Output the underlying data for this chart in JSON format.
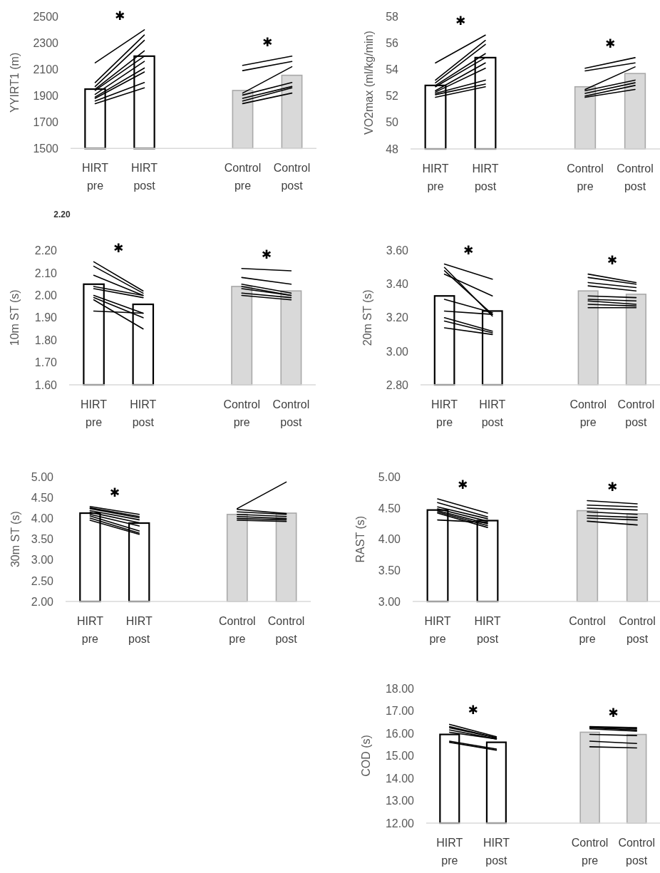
{
  "chart_data": [
    {
      "type": "bar",
      "ylabel": "YYIRT1 (m)",
      "categories": [
        "HIRT pre",
        "HIRT post",
        null,
        "Control pre",
        "Control post"
      ],
      "ylim": [
        1500,
        2500
      ],
      "yticks": [
        1500,
        1700,
        1900,
        2100,
        2300,
        2500
      ],
      "annotations": [
        "✱",
        "✱"
      ],
      "series": [
        {
          "type": "bar",
          "colors": [
            "#ffffff",
            "#ffffff",
            null,
            "#d9d9d9",
            "#d9d9d9"
          ],
          "values": [
            1950,
            2200,
            null,
            1940,
            2055
          ]
        },
        {
          "type": "line",
          "color": "#000000",
          "values": [
            2150,
            2400,
            null,
            null,
            null
          ]
        },
        {
          "type": "line",
          "color": "#000000",
          "values": [
            2000,
            2360,
            null,
            null,
            null
          ]
        },
        {
          "type": "line",
          "color": "#000000",
          "values": [
            1970,
            2320,
            null,
            null,
            null
          ]
        },
        {
          "type": "line",
          "color": "#000000",
          "values": [
            1950,
            2240,
            null,
            null,
            null
          ]
        },
        {
          "type": "line",
          "color": "#000000",
          "values": [
            1940,
            2200,
            null,
            null,
            null
          ]
        },
        {
          "type": "line",
          "color": "#000000",
          "values": [
            1910,
            2160,
            null,
            null,
            null
          ]
        },
        {
          "type": "line",
          "color": "#000000",
          "values": [
            1890,
            2110,
            null,
            null,
            null
          ]
        },
        {
          "type": "line",
          "color": "#000000",
          "values": [
            1880,
            2080,
            null,
            null,
            null
          ]
        },
        {
          "type": "line",
          "color": "#000000",
          "values": [
            1860,
            2000,
            null,
            null,
            null
          ]
        },
        {
          "type": "line",
          "color": "#000000",
          "values": [
            1840,
            1960,
            null,
            null,
            null
          ]
        },
        {
          "type": "line",
          "color": "#000000",
          "values": [
            null,
            null,
            null,
            2130,
            2200
          ]
        },
        {
          "type": "line",
          "color": "#000000",
          "values": [
            null,
            null,
            null,
            2090,
            2160
          ]
        },
        {
          "type": "line",
          "color": "#000000",
          "values": [
            null,
            null,
            null,
            1920,
            2120
          ]
        },
        {
          "type": "line",
          "color": "#000000",
          "values": [
            null,
            null,
            null,
            1905,
            2000
          ]
        },
        {
          "type": "line",
          "color": "#000000",
          "values": [
            null,
            null,
            null,
            1880,
            1970
          ]
        },
        {
          "type": "line",
          "color": "#000000",
          "values": [
            null,
            null,
            null,
            1860,
            1960
          ]
        },
        {
          "type": "line",
          "color": "#000000",
          "values": [
            null,
            null,
            null,
            1840,
            1920
          ]
        }
      ]
    },
    {
      "type": "bar",
      "ylabel": "VO2max (ml/kg/min)",
      "categories": [
        "HIRT pre",
        "HIRT post",
        null,
        "Control pre",
        "Control post"
      ],
      "ylim": [
        48,
        58
      ],
      "yticks": [
        48,
        50,
        52,
        54,
        56,
        58
      ],
      "annotations": [
        "✱",
        "✱"
      ],
      "series": [
        {
          "type": "bar",
          "colors": [
            "#ffffff",
            "#ffffff",
            null,
            "#d9d9d9",
            "#d9d9d9"
          ],
          "values": [
            52.8,
            54.9,
            null,
            52.7,
            53.7
          ]
        },
        {
          "type": "line",
          "color": "#000000",
          "values": [
            54.5,
            56.6,
            null,
            null,
            null
          ]
        },
        {
          "type": "line",
          "color": "#000000",
          "values": [
            53.2,
            56.2,
            null,
            null,
            null
          ]
        },
        {
          "type": "line",
          "color": "#000000",
          "values": [
            53.0,
            55.9,
            null,
            null,
            null
          ]
        },
        {
          "type": "line",
          "color": "#000000",
          "values": [
            52.8,
            55.2,
            null,
            null,
            null
          ]
        },
        {
          "type": "line",
          "color": "#000000",
          "values": [
            52.7,
            54.9,
            null,
            null,
            null
          ]
        },
        {
          "type": "line",
          "color": "#000000",
          "values": [
            52.4,
            54.5,
            null,
            null,
            null
          ]
        },
        {
          "type": "line",
          "color": "#000000",
          "values": [
            52.3,
            54.1,
            null,
            null,
            null
          ]
        },
        {
          "type": "line",
          "color": "#000000",
          "values": [
            52.2,
            53.2,
            null,
            null,
            null
          ]
        },
        {
          "type": "line",
          "color": "#000000",
          "values": [
            52.1,
            52.9,
            null,
            null,
            null
          ]
        },
        {
          "type": "line",
          "color": "#000000",
          "values": [
            51.9,
            52.7,
            null,
            null,
            null
          ]
        },
        {
          "type": "line",
          "color": "#000000",
          "values": [
            null,
            null,
            null,
            54.1,
            54.9
          ]
        },
        {
          "type": "line",
          "color": "#000000",
          "values": [
            null,
            null,
            null,
            53.9,
            54.5
          ]
        },
        {
          "type": "line",
          "color": "#000000",
          "values": [
            null,
            null,
            null,
            52.5,
            54.2
          ]
        },
        {
          "type": "line",
          "color": "#000000",
          "values": [
            null,
            null,
            null,
            52.4,
            53.2
          ]
        },
        {
          "type": "line",
          "color": "#000000",
          "values": [
            null,
            null,
            null,
            52.2,
            53.0
          ]
        },
        {
          "type": "line",
          "color": "#000000",
          "values": [
            null,
            null,
            null,
            52.0,
            52.8
          ]
        },
        {
          "type": "line",
          "color": "#000000",
          "values": [
            null,
            null,
            null,
            51.9,
            52.5
          ]
        }
      ]
    },
    {
      "type": "bar",
      "title": "2.20",
      "ylabel": "10m ST (s)",
      "categories": [
        "HIRT pre",
        "HIRT post",
        null,
        "Control pre",
        "Control post"
      ],
      "ylim": [
        1.6,
        2.2
      ],
      "yticks": [
        {
          "value": 1.6,
          "label": "1.60"
        },
        {
          "value": 1.7,
          "label": "1.70"
        },
        {
          "value": 1.8,
          "label": "1.80"
        },
        {
          "value": 1.9,
          "label": "1.90"
        },
        {
          "value": 2.0,
          "label": "2.00"
        },
        {
          "value": 2.1,
          "label": "2.10"
        },
        {
          "value": 2.2,
          "label": "2.20"
        }
      ],
      "annotations": [
        "✱",
        "✱"
      ],
      "series": [
        {
          "type": "bar",
          "colors": [
            "#ffffff",
            "#ffffff",
            null,
            "#d9d9d9",
            "#d9d9d9"
          ],
          "values": [
            2.05,
            1.96,
            null,
            2.04,
            2.02
          ]
        },
        {
          "type": "line",
          "color": "#000000",
          "values": [
            2.15,
            2.02,
            null,
            null,
            null
          ]
        },
        {
          "type": "line",
          "color": "#000000",
          "values": [
            2.13,
            2.01,
            null,
            null,
            null
          ]
        },
        {
          "type": "line",
          "color": "#000000",
          "values": [
            2.09,
            2.0,
            null,
            null,
            null
          ]
        },
        {
          "type": "line",
          "color": "#000000",
          "values": [
            2.04,
            2.0,
            null,
            null,
            null
          ]
        },
        {
          "type": "line",
          "color": "#000000",
          "values": [
            2.03,
            1.99,
            null,
            null,
            null
          ]
        },
        {
          "type": "line",
          "color": "#000000",
          "values": [
            2.0,
            1.92,
            null,
            null,
            null
          ]
        },
        {
          "type": "line",
          "color": "#000000",
          "values": [
            1.99,
            1.9,
            null,
            null,
            null
          ]
        },
        {
          "type": "line",
          "color": "#000000",
          "values": [
            1.98,
            1.85,
            null,
            null,
            null
          ]
        },
        {
          "type": "line",
          "color": "#000000",
          "values": [
            1.93,
            1.92,
            null,
            null,
            null
          ]
        },
        {
          "type": "line",
          "color": "#000000",
          "values": [
            null,
            null,
            null,
            2.12,
            2.11
          ]
        },
        {
          "type": "line",
          "color": "#000000",
          "values": [
            null,
            null,
            null,
            2.08,
            2.05
          ]
        },
        {
          "type": "line",
          "color": "#000000",
          "values": [
            null,
            null,
            null,
            2.05,
            2.01
          ]
        },
        {
          "type": "line",
          "color": "#000000",
          "values": [
            null,
            null,
            null,
            2.04,
            2.0
          ]
        },
        {
          "type": "line",
          "color": "#000000",
          "values": [
            null,
            null,
            null,
            2.03,
            2.0
          ]
        },
        {
          "type": "line",
          "color": "#000000",
          "values": [
            null,
            null,
            null,
            2.01,
            1.99
          ]
        },
        {
          "type": "line",
          "color": "#000000",
          "values": [
            null,
            null,
            null,
            2.0,
            1.98
          ]
        }
      ]
    },
    {
      "type": "bar",
      "ylabel": "20m ST (s)",
      "categories": [
        "HIRT pre",
        "HIRT post",
        null,
        "Control pre",
        "Control post"
      ],
      "ylim": [
        2.8,
        3.6
      ],
      "yticks": [
        {
          "value": 2.8,
          "label": "2.80"
        },
        {
          "value": 3.0,
          "label": "3.00"
        },
        {
          "value": 3.2,
          "label": "3.20"
        },
        {
          "value": 3.4,
          "label": "3.40"
        },
        {
          "value": 3.6,
          "label": "3.60"
        }
      ],
      "annotations": [
        "✱",
        "✱"
      ],
      "series": [
        {
          "type": "bar",
          "colors": [
            "#ffffff",
            "#ffffff",
            null,
            "#d9d9d9",
            "#d9d9d9"
          ],
          "values": [
            3.33,
            3.24,
            null,
            3.36,
            3.34
          ]
        },
        {
          "type": "line",
          "color": "#000000",
          "values": [
            3.52,
            3.43,
            null,
            null,
            null
          ]
        },
        {
          "type": "line",
          "color": "#000000",
          "values": [
            3.5,
            3.21,
            null,
            null,
            null
          ]
        },
        {
          "type": "line",
          "color": "#000000",
          "values": [
            3.48,
            3.22,
            null,
            null,
            null
          ]
        },
        {
          "type": "line",
          "color": "#000000",
          "values": [
            3.46,
            3.33,
            null,
            null,
            null
          ]
        },
        {
          "type": "line",
          "color": "#000000",
          "values": [
            3.31,
            3.23,
            null,
            null,
            null
          ]
        },
        {
          "type": "line",
          "color": "#000000",
          "values": [
            3.24,
            3.22,
            null,
            null,
            null
          ]
        },
        {
          "type": "line",
          "color": "#000000",
          "values": [
            3.2,
            3.12,
            null,
            null,
            null
          ]
        },
        {
          "type": "line",
          "color": "#000000",
          "values": [
            3.18,
            3.11,
            null,
            null,
            null
          ]
        },
        {
          "type": "line",
          "color": "#000000",
          "values": [
            3.14,
            3.1,
            null,
            null,
            null
          ]
        },
        {
          "type": "line",
          "color": "#000000",
          "values": [
            null,
            null,
            null,
            3.46,
            3.41
          ]
        },
        {
          "type": "line",
          "color": "#000000",
          "values": [
            null,
            null,
            null,
            3.44,
            3.4
          ]
        },
        {
          "type": "line",
          "color": "#000000",
          "values": [
            null,
            null,
            null,
            3.41,
            3.38
          ]
        },
        {
          "type": "line",
          "color": "#000000",
          "values": [
            null,
            null,
            null,
            3.39,
            3.36
          ]
        },
        {
          "type": "line",
          "color": "#000000",
          "values": [
            null,
            null,
            null,
            3.33,
            3.32
          ]
        },
        {
          "type": "line",
          "color": "#000000",
          "values": [
            null,
            null,
            null,
            3.31,
            3.3
          ]
        },
        {
          "type": "line",
          "color": "#000000",
          "values": [
            null,
            null,
            null,
            3.3,
            3.28
          ]
        },
        {
          "type": "line",
          "color": "#000000",
          "values": [
            null,
            null,
            null,
            3.28,
            3.27
          ]
        },
        {
          "type": "line",
          "color": "#000000",
          "values": [
            null,
            null,
            null,
            3.26,
            3.26
          ]
        }
      ]
    },
    {
      "type": "bar",
      "ylabel": "30m ST (s)",
      "categories": [
        "HIRT pre",
        "HIRT post",
        null,
        "Control pre",
        "Control post"
      ],
      "ylim": [
        2.0,
        5.0
      ],
      "yticks": [
        {
          "value": 2.0,
          "label": "2.00"
        },
        {
          "value": 2.5,
          "label": "2.50"
        },
        {
          "value": 3.0,
          "label": "3.00"
        },
        {
          "value": 3.5,
          "label": "3.50"
        },
        {
          "value": 4.0,
          "label": "4.00"
        },
        {
          "value": 4.5,
          "label": "4.50"
        },
        {
          "value": 5.0,
          "label": "5.00"
        }
      ],
      "annotations": [
        "✱"
      ],
      "series": [
        {
          "type": "bar",
          "colors": [
            "#ffffff",
            "#ffffff",
            null,
            "#d9d9d9",
            "#d9d9d9"
          ],
          "values": [
            4.13,
            3.89,
            null,
            4.1,
            4.13
          ]
        },
        {
          "type": "line",
          "color": "#000000",
          "values": [
            4.29,
            4.1,
            null,
            null,
            null
          ]
        },
        {
          "type": "line",
          "color": "#000000",
          "values": [
            4.26,
            4.05,
            null,
            null,
            null
          ]
        },
        {
          "type": "line",
          "color": "#000000",
          "values": [
            4.24,
            4.02,
            null,
            null,
            null
          ]
        },
        {
          "type": "line",
          "color": "#000000",
          "values": [
            4.19,
            3.97,
            null,
            null,
            null
          ]
        },
        {
          "type": "line",
          "color": "#000000",
          "values": [
            4.15,
            3.9,
            null,
            null,
            null
          ]
        },
        {
          "type": "line",
          "color": "#000000",
          "values": [
            4.1,
            3.82,
            null,
            null,
            null
          ]
        },
        {
          "type": "line",
          "color": "#000000",
          "values": [
            4.06,
            3.7,
            null,
            null,
            null
          ]
        },
        {
          "type": "line",
          "color": "#000000",
          "values": [
            4.01,
            3.65,
            null,
            null,
            null
          ]
        },
        {
          "type": "line",
          "color": "#000000",
          "values": [
            3.96,
            3.62,
            null,
            null,
            null
          ]
        },
        {
          "type": "line",
          "color": "#000000",
          "values": [
            null,
            null,
            null,
            4.24,
            4.88
          ]
        },
        {
          "type": "line",
          "color": "#000000",
          "values": [
            null,
            null,
            null,
            4.22,
            4.12
          ]
        },
        {
          "type": "line",
          "color": "#000000",
          "values": [
            null,
            null,
            null,
            4.16,
            4.1
          ]
        },
        {
          "type": "line",
          "color": "#000000",
          "values": [
            null,
            null,
            null,
            4.1,
            4.05
          ]
        },
        {
          "type": "line",
          "color": "#000000",
          "values": [
            null,
            null,
            null,
            4.05,
            4.0
          ]
        },
        {
          "type": "line",
          "color": "#000000",
          "values": [
            null,
            null,
            null,
            4.0,
            3.97
          ]
        },
        {
          "type": "line",
          "color": "#000000",
          "values": [
            null,
            null,
            null,
            3.96,
            3.93
          ]
        }
      ]
    },
    {
      "type": "bar",
      "ylabel": "RAST (s)",
      "categories": [
        "HIRT pre",
        "HIRT post",
        null,
        "Control pre",
        "Control post"
      ],
      "ylim": [
        3.0,
        5.0
      ],
      "yticks": [
        {
          "value": 3.0,
          "label": "3.00"
        },
        {
          "value": 3.5,
          "label": "3.50"
        },
        {
          "value": 4.0,
          "label": "4.00"
        },
        {
          "value": 4.5,
          "label": "4.50"
        },
        {
          "value": 5.0,
          "label": "5.00"
        }
      ],
      "annotations": [
        "✱",
        "✱"
      ],
      "series": [
        {
          "type": "bar",
          "colors": [
            "#ffffff",
            "#ffffff",
            null,
            "#d9d9d9",
            "#d9d9d9"
          ],
          "values": [
            4.47,
            4.3,
            null,
            4.46,
            4.41
          ]
        },
        {
          "type": "line",
          "color": "#000000",
          "values": [
            4.65,
            4.42,
            null,
            null,
            null
          ]
        },
        {
          "type": "line",
          "color": "#000000",
          "values": [
            4.59,
            4.36,
            null,
            null,
            null
          ]
        },
        {
          "type": "line",
          "color": "#000000",
          "values": [
            4.52,
            4.33,
            null,
            null,
            null
          ]
        },
        {
          "type": "line",
          "color": "#000000",
          "values": [
            4.49,
            4.29,
            null,
            null,
            null
          ]
        },
        {
          "type": "line",
          "color": "#000000",
          "values": [
            4.46,
            4.25,
            null,
            null,
            null
          ]
        },
        {
          "type": "line",
          "color": "#000000",
          "values": [
            4.44,
            4.22,
            null,
            null,
            null
          ]
        },
        {
          "type": "line",
          "color": "#000000",
          "values": [
            4.42,
            4.19,
            null,
            null,
            null
          ]
        },
        {
          "type": "line",
          "color": "#000000",
          "values": [
            4.31,
            4.27,
            null,
            null,
            null
          ]
        },
        {
          "type": "line",
          "color": "#000000",
          "values": [
            null,
            null,
            null,
            4.62,
            4.57
          ]
        },
        {
          "type": "line",
          "color": "#000000",
          "values": [
            null,
            null,
            null,
            4.55,
            4.52
          ]
        },
        {
          "type": "line",
          "color": "#000000",
          "values": [
            null,
            null,
            null,
            4.5,
            4.47
          ]
        },
        {
          "type": "line",
          "color": "#000000",
          "values": [
            null,
            null,
            null,
            4.44,
            4.4
          ]
        },
        {
          "type": "line",
          "color": "#000000",
          "values": [
            null,
            null,
            null,
            4.38,
            4.35
          ]
        },
        {
          "type": "line",
          "color": "#000000",
          "values": [
            null,
            null,
            null,
            4.34,
            4.31
          ]
        },
        {
          "type": "line",
          "color": "#000000",
          "values": [
            null,
            null,
            null,
            4.29,
            4.23
          ]
        }
      ]
    },
    {
      "type": "bar",
      "ylabel": "COD (s)",
      "categories": [
        "HIRT pre",
        "HIRT post",
        null,
        "Control pre",
        "Control post"
      ],
      "ylim": [
        12.0,
        18.0
      ],
      "yticks": [
        {
          "value": 12,
          "label": "12.00"
        },
        {
          "value": 13,
          "label": "13.00"
        },
        {
          "value": 14,
          "label": "14.00"
        },
        {
          "value": 15,
          "label": "15.00"
        },
        {
          "value": 16,
          "label": "16.00"
        },
        {
          "value": 17,
          "label": "17.00"
        },
        {
          "value": 18,
          "label": "18.00"
        }
      ],
      "annotations": [
        "✱",
        "✱"
      ],
      "series": [
        {
          "type": "bar",
          "colors": [
            "#ffffff",
            "#ffffff",
            null,
            "#d9d9d9",
            "#d9d9d9"
          ],
          "values": [
            15.95,
            15.6,
            null,
            16.05,
            15.95
          ]
        },
        {
          "type": "line",
          "color": "#000000",
          "values": [
            16.4,
            15.85,
            null,
            null,
            null
          ]
        },
        {
          "type": "line",
          "color": "#000000",
          "values": [
            16.3,
            15.8,
            null,
            null,
            null
          ]
        },
        {
          "type": "line",
          "color": "#000000",
          "values": [
            16.25,
            15.8,
            null,
            null,
            null
          ]
        },
        {
          "type": "line",
          "color": "#000000",
          "values": [
            16.15,
            15.75,
            null,
            null,
            null
          ]
        },
        {
          "type": "line",
          "color": "#000000",
          "values": [
            16.05,
            15.75,
            null,
            null,
            null
          ]
        },
        {
          "type": "line",
          "color": "#000000",
          "values": [
            15.65,
            15.3,
            null,
            null,
            null
          ]
        },
        {
          "type": "line",
          "color": "#000000",
          "values": [
            15.6,
            15.25,
            null,
            null,
            null
          ]
        },
        {
          "type": "line",
          "color": "#000000",
          "values": [
            null,
            null,
            null,
            16.3,
            16.25
          ]
        },
        {
          "type": "line",
          "color": "#000000",
          "values": [
            null,
            null,
            null,
            16.28,
            16.2
          ]
        },
        {
          "type": "line",
          "color": "#000000",
          "values": [
            null,
            null,
            null,
            16.25,
            16.15
          ]
        },
        {
          "type": "line",
          "color": "#000000",
          "values": [
            null,
            null,
            null,
            16.2,
            16.1
          ]
        },
        {
          "type": "line",
          "color": "#000000",
          "values": [
            null,
            null,
            null,
            15.95,
            15.9
          ]
        },
        {
          "type": "line",
          "color": "#000000",
          "values": [
            null,
            null,
            null,
            15.65,
            15.55
          ]
        },
        {
          "type": "line",
          "color": "#000000",
          "values": [
            null,
            null,
            null,
            15.4,
            15.35
          ]
        }
      ]
    }
  ]
}
